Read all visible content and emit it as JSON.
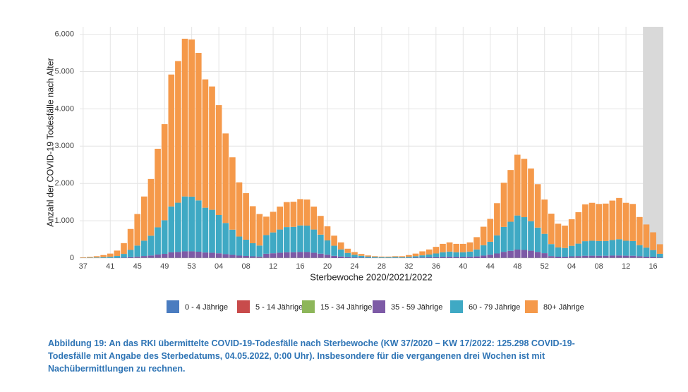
{
  "chart_data": {
    "type": "stacked_bar",
    "y_label": "Anzahl der COVID-19 Todesfälle nach Alter",
    "x_label": "Sterbewoche 2020/2021/2022",
    "caption_lines": [
      "Abbildung 19: An das RKI übermittelte COVID-19-Todesfälle nach Sterbewoche (KW 37/2020 – KW 17/2022: 125.298 COVID-19-",
      "Todesfälle mit Angabe des Sterbedatums, 04.05.2022, 0:00 Uhr). Insbesondere für die vergangenen drei Wochen ist mit",
      "Nachübermittlungen zu rechnen."
    ],
    "categories": [
      "37",
      null,
      null,
      null,
      "41",
      null,
      null,
      null,
      "45",
      null,
      null,
      null,
      "49",
      null,
      null,
      null,
      "53",
      null,
      null,
      null,
      "04",
      null,
      null,
      null,
      "08",
      null,
      null,
      null,
      "12",
      null,
      null,
      null,
      "16",
      null,
      null,
      null,
      "20",
      null,
      null,
      null,
      "24",
      null,
      null,
      null,
      "28",
      null,
      null,
      null,
      "32",
      null,
      null,
      null,
      "36",
      null,
      null,
      null,
      "40",
      null,
      null,
      null,
      "44",
      null,
      null,
      null,
      "48",
      null,
      null,
      null,
      "52",
      null,
      null,
      null,
      "04",
      null,
      null,
      null,
      "08",
      null,
      null,
      null,
      "12",
      null,
      null,
      null,
      "16",
      null
    ],
    "shaded_from_index": 83,
    "ylim": [
      0,
      6200
    ],
    "yticks": [
      0,
      {
        "value": 1000,
        "label": "1.000"
      },
      {
        "value": 2000,
        "label": "2.000"
      },
      {
        "value": 3000,
        "label": "3.000"
      },
      {
        "value": 4000,
        "label": "4.000"
      },
      {
        "value": 5000,
        "label": "5.000"
      },
      {
        "value": 6000,
        "label": "6.000"
      }
    ],
    "grid": true,
    "legend": "bottom",
    "series": [
      {
        "name": "0 - 4 Jährige",
        "color": "#4a7cc0",
        "values": [
          0,
          0,
          0,
          0,
          0,
          0,
          0,
          0,
          0,
          0,
          0,
          0,
          0,
          0,
          0,
          0,
          0,
          0,
          0,
          0,
          0,
          0,
          0,
          0,
          0,
          0,
          0,
          0,
          0,
          0,
          0,
          0,
          0,
          0,
          0,
          0,
          0,
          0,
          0,
          0,
          0,
          0,
          0,
          0,
          0,
          0,
          0,
          0,
          0,
          0,
          0,
          0,
          0,
          0,
          0,
          0,
          0,
          0,
          0,
          0,
          0,
          0,
          0,
          0,
          0,
          0,
          0,
          0,
          0,
          0,
          0,
          0,
          0,
          0,
          0,
          0,
          0,
          0,
          0,
          0,
          0,
          0,
          0,
          0,
          0,
          0
        ]
      },
      {
        "name": "5 - 14 Jährige",
        "color": "#c84b4b",
        "values": [
          0,
          0,
          0,
          0,
          0,
          0,
          0,
          0,
          0,
          0,
          0,
          0,
          0,
          0,
          0,
          0,
          0,
          0,
          0,
          0,
          0,
          0,
          0,
          0,
          0,
          0,
          0,
          0,
          0,
          0,
          0,
          0,
          0,
          0,
          0,
          0,
          0,
          0,
          0,
          0,
          0,
          0,
          0,
          0,
          0,
          0,
          0,
          0,
          0,
          0,
          0,
          0,
          0,
          0,
          0,
          0,
          0,
          0,
          0,
          0,
          0,
          0,
          0,
          0,
          0,
          0,
          0,
          0,
          0,
          0,
          0,
          0,
          0,
          0,
          0,
          0,
          0,
          0,
          0,
          0,
          0,
          0,
          0,
          0,
          0,
          0
        ]
      },
      {
        "name": "15 - 34 Jährige",
        "color": "#8db65a",
        "values": [
          0,
          0,
          0,
          0,
          0,
          0,
          0,
          0,
          5,
          5,
          5,
          5,
          5,
          5,
          5,
          5,
          5,
          5,
          5,
          5,
          5,
          5,
          5,
          5,
          5,
          5,
          5,
          5,
          5,
          5,
          5,
          5,
          5,
          5,
          5,
          5,
          5,
          0,
          0,
          0,
          0,
          0,
          0,
          0,
          0,
          0,
          0,
          0,
          0,
          0,
          0,
          0,
          0,
          0,
          0,
          0,
          0,
          0,
          0,
          0,
          5,
          5,
          5,
          5,
          5,
          5,
          5,
          5,
          5,
          5,
          0,
          0,
          5,
          5,
          5,
          5,
          5,
          5,
          5,
          5,
          5,
          5,
          5,
          0,
          0,
          0
        ]
      },
      {
        "name": "35 - 59 Jährige",
        "color": "#7d5aa6",
        "values": [
          1,
          1,
          2,
          3,
          4,
          6,
          12,
          23,
          35,
          50,
          64,
          88,
          108,
          148,
          158,
          176,
          176,
          165,
          144,
          138,
          123,
          100,
          81,
          61,
          52,
          42,
          35,
          111,
          124,
          138,
          150,
          151,
          158,
          157,
          138,
          113,
          85,
          60,
          42,
          25,
          16,
          11,
          7,
          5,
          4,
          4,
          5,
          4,
          6,
          10,
          14,
          18,
          24,
          30,
          34,
          30,
          30,
          34,
          45,
          67,
          84,
          118,
          162,
          189,
          222,
          213,
          192,
          158,
          126,
          48,
          37,
          35,
          42,
          49,
          58,
          59,
          58,
          58,
          62,
          64,
          59,
          58,
          44,
          36,
          28,
          15
        ]
      },
      {
        "name": "60 - 79 Jährige",
        "color": "#3fa9c4",
        "values": [
          5,
          8,
          13,
          20,
          30,
          50,
          100,
          195,
          295,
          410,
          530,
          730,
          900,
          1230,
          1320,
          1470,
          1465,
          1375,
          1200,
          1150,
          1025,
          835,
          675,
          510,
          435,
          350,
          295,
          500,
          558,
          621,
          675,
          680,
          711,
          707,
          621,
          509,
          383,
          270,
          189,
          113,
          72,
          50,
          32,
          23,
          18,
          18,
          23,
          17,
          26,
          40,
          59,
          76,
          99,
          125,
          139,
          125,
          125,
          139,
          185,
          277,
          347,
          485,
          667,
          779,
          914,
          878,
          792,
          653,
          518,
          321,
          248,
          235,
          281,
          332,
          389,
          400,
          392,
          394,
          416,
          435,
          400,
          392,
          297,
          243,
          186,
          100
        ]
      },
      {
        "name": "80+ Jährige",
        "color": "#f5994a",
        "values": [
          14,
          21,
          35,
          57,
          86,
          144,
          288,
          562,
          845,
          1185,
          1521,
          2107,
          2577,
          3537,
          3797,
          4229,
          4214,
          3955,
          3441,
          3307,
          2947,
          2400,
          1939,
          1454,
          1248,
          993,
          845,
          494,
          553,
          616,
          670,
          674,
          706,
          701,
          616,
          503,
          377,
          270,
          189,
          112,
          72,
          49,
          31,
          22,
          18,
          18,
          22,
          29,
          48,
          70,
          107,
          136,
          177,
          225,
          247,
          225,
          225,
          247,
          330,
          496,
          614,
          862,
          1186,
          1387,
          1629,
          1564,
          1411,
          1164,
          921,
          816,
          635,
          600,
          712,
          844,
          988,
          1016,
          995,
          1003,
          1057,
          1106,
          1016,
          995,
          754,
          621,
          476,
          255
        ]
      }
    ]
  }
}
